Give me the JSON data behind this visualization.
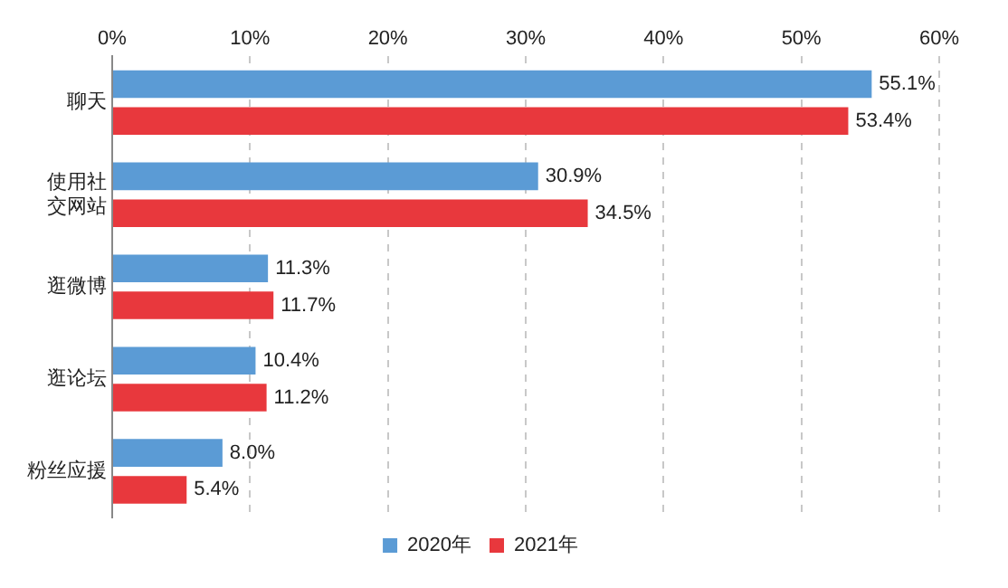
{
  "chart_data": {
    "type": "bar",
    "orientation": "horizontal",
    "categories": [
      "聊天",
      "使用社交网站",
      "逛微博",
      "逛论坛",
      "粉丝应援"
    ],
    "series": [
      {
        "name": "2020年",
        "color": "#5b9bd5",
        "values": [
          55.1,
          30.9,
          11.3,
          10.4,
          8.0
        ],
        "value_labels": [
          "55.1%",
          "30.9%",
          "11.3%",
          "10.4%",
          "8.0%"
        ]
      },
      {
        "name": "2021年",
        "color": "#e8383d",
        "values": [
          53.4,
          34.5,
          11.7,
          11.2,
          5.4
        ],
        "value_labels": [
          "53.4%",
          "34.5%",
          "11.7%",
          "11.2%",
          "5.4%"
        ]
      }
    ],
    "xlim": [
      0,
      60
    ],
    "xticks": [
      {
        "value": 0,
        "label": "0%"
      },
      {
        "value": 10,
        "label": "10%"
      },
      {
        "value": 20,
        "label": "20%"
      },
      {
        "value": 30,
        "label": "30%"
      },
      {
        "value": 40,
        "label": "40%"
      },
      {
        "value": 50,
        "label": "50%"
      },
      {
        "value": 60,
        "label": "60%"
      }
    ],
    "grid": "x",
    "legend": "bottom"
  }
}
